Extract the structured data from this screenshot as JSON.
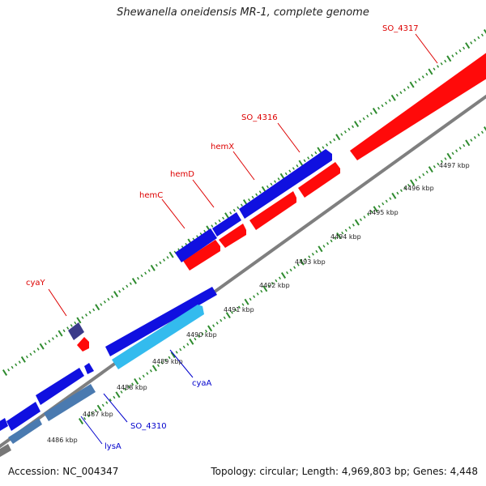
{
  "title": "Shewanella oneidensis MR-1, complete genome",
  "footer": {
    "accession": "Accession: NC_004347",
    "summary": "Topology: circular; Length: 4,969,803 bp; Genes: 4,448"
  },
  "colors": {
    "forward_gene": "#1010e0",
    "reverse_gene": "#ff0a0a",
    "forward_label": "#0000cc",
    "reverse_label": "#dd0000",
    "cyaY": "#3a3a8a",
    "cyaA": "#33bbee",
    "lysA": "#4a7ab0",
    "backbone": "#808080",
    "ticks": "#2e8b2e"
  },
  "kbp_labels": [
    "4486 kbp",
    "4487 kbp",
    "4488 kbp",
    "4489 kbp",
    "4490 kbp",
    "4491 kbp",
    "4492 kbp",
    "4493 kbp",
    "4494 kbp",
    "4495 kbp",
    "4496 kbp",
    "4497 kbp"
  ],
  "gene_labels": [
    {
      "name": "SO_4317",
      "strand": "reverse"
    },
    {
      "name": "SO_4316",
      "strand": "reverse"
    },
    {
      "name": "hemX",
      "strand": "reverse"
    },
    {
      "name": "hemD",
      "strand": "reverse"
    },
    {
      "name": "hemC",
      "strand": "reverse"
    },
    {
      "name": "cyaY",
      "strand": "reverse"
    },
    {
      "name": "cyaA",
      "strand": "forward"
    },
    {
      "name": "SO_4310",
      "strand": "forward"
    },
    {
      "name": "lysA",
      "strand": "forward"
    }
  ]
}
